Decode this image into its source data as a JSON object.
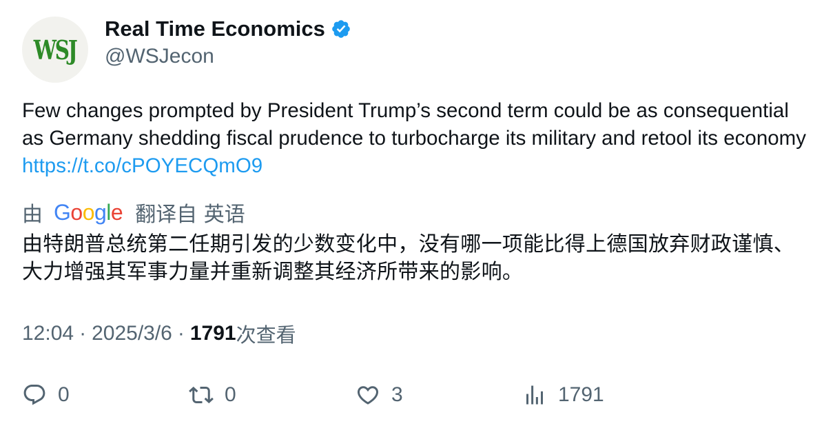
{
  "account": {
    "avatar_text": "WSJ",
    "display_name": "Real Time Economics",
    "verified": true,
    "handle": "@WSJecon"
  },
  "tweet": {
    "text": "Few changes prompted by President Trump’s second term could be as consequential as Germany shedding fiscal prudence to turbocharge its military and retool its economy ",
    "link": "https://t.co/cPOYECQmO9"
  },
  "translation": {
    "prefix": "由",
    "provider": "Google",
    "suffix": "翻译自 英语",
    "text": "由特朗普总统第二任期引发的少数变化中，没有哪一项能比得上德国放弃财政谨慎、大力增强其军事力量并重新调整其经济所带来的影响。"
  },
  "meta": {
    "time": "12:04",
    "separator": "·",
    "date": "2025/3/6",
    "views_count": "1791",
    "views_label": "次查看"
  },
  "actions": {
    "reply": {
      "icon": "reply-icon",
      "count": "0"
    },
    "retweet": {
      "icon": "retweet-icon",
      "count": "0"
    },
    "like": {
      "icon": "like-icon",
      "count": "3"
    },
    "views": {
      "icon": "views-icon",
      "count": "1791"
    }
  },
  "colors": {
    "text": "#0f1419",
    "secondary": "#536471",
    "link": "#1d9bf0",
    "verified": "#1d9bf0",
    "avatar_bg": "#f2f2ee",
    "avatar_text": "#2d8a27"
  }
}
